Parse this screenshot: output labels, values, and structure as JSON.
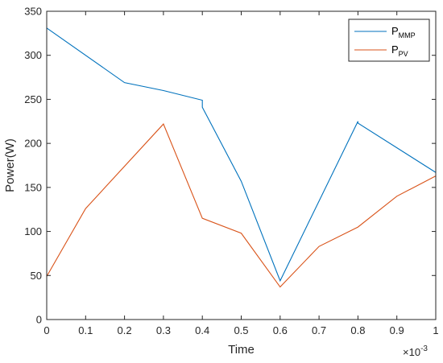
{
  "chart_data": {
    "type": "line",
    "title": "",
    "xlabel": "Time",
    "ylabel": "Power(W)",
    "x_exponent_label": "×10",
    "x_exponent_power": "-3",
    "xlim": [
      0,
      1
    ],
    "ylim": [
      0,
      350
    ],
    "x_ticks": [
      0,
      0.1,
      0.2,
      0.3,
      0.4,
      0.5,
      0.6,
      0.7,
      0.8,
      0.9,
      1
    ],
    "x_tick_labels": [
      "0",
      "0.1",
      "0.2",
      "0.3",
      "0.4",
      "0.5",
      "0.6",
      "0.7",
      "0.8",
      "0.9",
      "1"
    ],
    "y_ticks": [
      0,
      50,
      100,
      150,
      200,
      250,
      300,
      350
    ],
    "y_tick_labels": [
      "0",
      "50",
      "100",
      "150",
      "200",
      "250",
      "300",
      "350"
    ],
    "grid": false,
    "legend_position": "top-right",
    "series": [
      {
        "name_base": "P",
        "name_sub": "MMP",
        "color": "#0072bd",
        "x": [
          0,
          0.2,
          0.3,
          0.4,
          0.4,
          0.5,
          0.6,
          0.8,
          0.8,
          1
        ],
        "y": [
          331,
          269,
          260,
          249,
          241,
          157,
          44,
          225,
          223,
          167
        ]
      },
      {
        "name_base": "P",
        "name_sub": "PV",
        "color": "#d95319",
        "x": [
          0,
          0.1,
          0.3,
          0.4,
          0.5,
          0.6,
          0.7,
          0.8,
          0.9,
          1
        ],
        "y": [
          49,
          126,
          222,
          115,
          98,
          37,
          83,
          105,
          140,
          163
        ]
      }
    ]
  }
}
